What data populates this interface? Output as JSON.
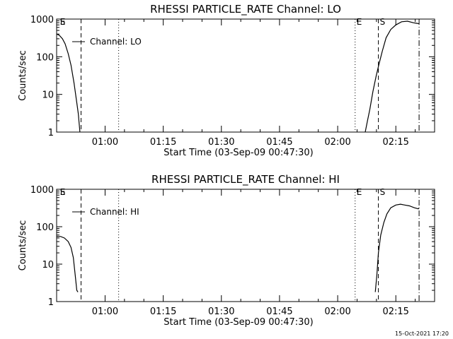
{
  "footer": {
    "timestamp": "15-Oct-2021 17:20"
  },
  "colors": {
    "background": "#ffffff",
    "ink": "#000000"
  },
  "chart_data": [
    {
      "type": "line",
      "title": "RHESSI PARTICLE_RATE Channel: LO",
      "xlabel": "Start Time (03-Sep-09 00:47:30)",
      "ylabel": "Counts/sec",
      "x_unit": "minutes after 00:47:30",
      "xlim": [
        0,
        97.5
      ],
      "ylim": [
        1,
        1000
      ],
      "yscale": "log",
      "x_ticks": [
        "01:00",
        "01:15",
        "01:30",
        "01:45",
        "02:00",
        "02:15"
      ],
      "y_ticks": [
        "1",
        "10",
        "100",
        "1000"
      ],
      "legend": {
        "label": "Channel: LO",
        "placement": "top-left"
      },
      "markers": [
        {
          "label": "E",
          "x": 0.5,
          "style": "dotted"
        },
        {
          "label": "S",
          "x": 0.5,
          "style": "dashed"
        },
        {
          "label": "",
          "x": 6.3,
          "style": "dashed"
        },
        {
          "label": "",
          "x": 16.0,
          "style": "dotted"
        },
        {
          "label": "E",
          "x": 77.0,
          "style": "dotted"
        },
        {
          "label": "S",
          "x": 83.0,
          "style": "dashed"
        },
        {
          "label": "",
          "x": 93.5,
          "style": "dashdot"
        }
      ],
      "series": [
        {
          "values": [
            [
              0.0,
              400
            ],
            [
              0.7,
              370
            ],
            [
              1.5,
              300
            ],
            [
              2.2,
              220
            ],
            [
              3.0,
              120
            ],
            [
              3.7,
              60
            ],
            [
              4.5,
              20
            ],
            [
              5.2,
              6
            ],
            [
              5.6,
              3
            ],
            [
              6.0,
              1
            ]
          ]
        },
        {
          "values": [
            [
              79.6,
              1
            ],
            [
              80.2,
              2
            ],
            [
              80.8,
              4
            ],
            [
              81.6,
              12
            ],
            [
              82.4,
              30
            ],
            [
              83.1,
              60
            ],
            [
              84.0,
              140
            ],
            [
              85.0,
              320
            ],
            [
              86.2,
              530
            ],
            [
              87.5,
              700
            ],
            [
              89.0,
              850
            ],
            [
              90.5,
              880
            ],
            [
              92.0,
              800
            ],
            [
              93.0,
              770
            ],
            [
              93.5,
              750
            ]
          ]
        }
      ]
    },
    {
      "type": "line",
      "title": "RHESSI PARTICLE_RATE Channel: HI",
      "xlabel": "Start Time (03-Sep-09 00:47:30)",
      "ylabel": "Counts/sec",
      "x_unit": "minutes after 00:47:30",
      "xlim": [
        0,
        97.5
      ],
      "ylim": [
        1,
        1000
      ],
      "yscale": "log",
      "x_ticks": [
        "01:00",
        "01:15",
        "01:30",
        "01:45",
        "02:00",
        "02:15"
      ],
      "y_ticks": [
        "1",
        "10",
        "100",
        "1000"
      ],
      "legend": {
        "label": "Channel: HI",
        "placement": "top-left"
      },
      "markers": [
        {
          "label": "E",
          "x": 0.5,
          "style": "dotted"
        },
        {
          "label": "S",
          "x": 0.5,
          "style": "dashed"
        },
        {
          "label": "",
          "x": 6.3,
          "style": "dashed"
        },
        {
          "label": "",
          "x": 16.0,
          "style": "dotted"
        },
        {
          "label": "E",
          "x": 77.0,
          "style": "dotted"
        },
        {
          "label": "S",
          "x": 83.0,
          "style": "dashed"
        },
        {
          "label": "",
          "x": 93.5,
          "style": "dashdot"
        }
      ],
      "series": [
        {
          "values": [
            [
              0.0,
              55
            ],
            [
              1.0,
              55
            ],
            [
              2.0,
              50
            ],
            [
              3.0,
              40
            ],
            [
              3.7,
              28
            ],
            [
              4.3,
              15
            ],
            [
              4.8,
              5
            ],
            [
              5.2,
              2
            ],
            [
              5.5,
              1.8
            ]
          ]
        },
        {
          "values": [
            [
              82.2,
              1.8
            ],
            [
              82.6,
              5
            ],
            [
              83.0,
              20
            ],
            [
              83.6,
              60
            ],
            [
              84.4,
              130
            ],
            [
              85.2,
              220
            ],
            [
              86.2,
              320
            ],
            [
              87.5,
              380
            ],
            [
              88.7,
              400
            ],
            [
              89.8,
              380
            ],
            [
              91.0,
              360
            ],
            [
              92.3,
              320
            ],
            [
              93.3,
              300
            ],
            [
              93.5,
              320
            ]
          ]
        }
      ]
    }
  ]
}
